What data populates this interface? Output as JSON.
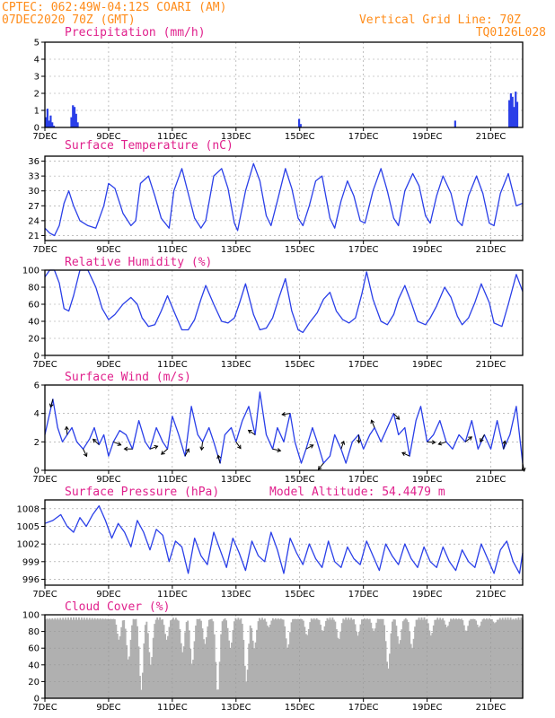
{
  "header": {
    "line1": "CPTEC:   062:49W-04:12S   COARI (AM)",
    "line2": "07DEC2020 70Z (GMT)",
    "grid_note": "Vertical Grid Line: 70Z",
    "code": "TQ0126L028"
  },
  "colors": {
    "header": "#ff8c1a",
    "title": "#e0208c",
    "series": "#2a3fe8",
    "cloud": "#b0b0b0",
    "vector": "#000000"
  },
  "x_axis": {
    "tick_labels": [
      "7DEC",
      "9DEC",
      "11DEC",
      "13DEC",
      "15DEC",
      "17DEC",
      "19DEC",
      "21DEC"
    ],
    "tick_days": [
      7,
      9,
      11,
      13,
      15,
      17,
      19,
      21
    ],
    "range_days": [
      7,
      22
    ]
  },
  "chart_data": [
    {
      "id": "precip",
      "type": "bar",
      "title": "Precipitation (mm/h)",
      "ylim": [
        0,
        5
      ],
      "yticks": [
        0,
        1,
        2,
        3,
        4,
        5
      ],
      "grid": true,
      "x_days": [
        7.0,
        7.05,
        7.1,
        7.15,
        7.2,
        7.25,
        7.8,
        7.85,
        7.9,
        7.95,
        8.0,
        14.95,
        15.0,
        19.85,
        21.55,
        21.6,
        21.65,
        21.7,
        21.75,
        21.8
      ],
      "values": [
        0.6,
        1.1,
        0.4,
        0.7,
        0.3,
        0.1,
        0.6,
        1.3,
        1.2,
        0.8,
        0.3,
        0.5,
        0.2,
        0.4,
        1.6,
        2.0,
        1.8,
        1.2,
        2.1,
        1.5
      ]
    },
    {
      "id": "temp",
      "type": "line",
      "title": "Surface Temperature (nC)",
      "ylim": [
        20,
        37
      ],
      "yticks": [
        21,
        24,
        27,
        30,
        33,
        36
      ],
      "grid": true,
      "x_days": [
        7.0,
        7.15,
        7.3,
        7.45,
        7.6,
        7.75,
        7.9,
        8.1,
        8.35,
        8.6,
        8.85,
        9.0,
        9.2,
        9.45,
        9.7,
        9.85,
        10.0,
        10.25,
        10.45,
        10.65,
        10.9,
        11.05,
        11.3,
        11.5,
        11.7,
        11.9,
        12.05,
        12.3,
        12.55,
        12.75,
        12.95,
        13.05,
        13.3,
        13.55,
        13.75,
        13.95,
        14.1,
        14.3,
        14.55,
        14.75,
        14.95,
        15.1,
        15.3,
        15.5,
        15.7,
        15.95,
        16.1,
        16.3,
        16.5,
        16.7,
        16.9,
        17.05,
        17.3,
        17.55,
        17.75,
        17.95,
        18.1,
        18.3,
        18.55,
        18.75,
        18.95,
        19.1,
        19.3,
        19.5,
        19.75,
        19.95,
        20.1,
        20.3,
        20.55,
        20.75,
        20.95,
        21.1,
        21.3,
        21.55,
        21.8,
        22.0
      ],
      "values": [
        22.5,
        21.5,
        21.0,
        23.0,
        27.5,
        30.0,
        27.0,
        24.0,
        23.0,
        22.5,
        27.0,
        31.5,
        30.5,
        25.5,
        23.0,
        24.0,
        31.5,
        33.0,
        29.0,
        24.5,
        22.5,
        30.0,
        34.5,
        29.5,
        24.5,
        22.5,
        24.0,
        33.0,
        34.5,
        30.5,
        23.5,
        22.0,
        30.0,
        35.5,
        32.0,
        25.0,
        23.0,
        28.0,
        34.5,
        30.5,
        24.5,
        23.0,
        27.0,
        32.0,
        33.0,
        24.5,
        22.5,
        28.0,
        32.0,
        29.0,
        24.0,
        23.5,
        30.0,
        34.5,
        30.0,
        24.5,
        23.0,
        30.0,
        33.5,
        31.0,
        25.0,
        23.5,
        29.0,
        33.0,
        29.5,
        24.0,
        23.0,
        29.0,
        33.0,
        29.5,
        23.5,
        23.0,
        29.5,
        33.5,
        27.0,
        27.5
      ]
    },
    {
      "id": "rh",
      "type": "line",
      "title": "Relative Humidity (%)",
      "ylim": [
        0,
        100
      ],
      "yticks": [
        0,
        20,
        40,
        60,
        80,
        100
      ],
      "grid": true,
      "x_days": [
        7.0,
        7.15,
        7.3,
        7.45,
        7.6,
        7.75,
        7.9,
        8.1,
        8.35,
        8.6,
        8.8,
        9.0,
        9.2,
        9.45,
        9.7,
        9.9,
        10.05,
        10.25,
        10.45,
        10.65,
        10.85,
        11.05,
        11.3,
        11.5,
        11.7,
        11.9,
        12.05,
        12.3,
        12.55,
        12.75,
        12.95,
        13.1,
        13.3,
        13.55,
        13.75,
        13.95,
        14.15,
        14.35,
        14.55,
        14.75,
        14.95,
        15.1,
        15.3,
        15.55,
        15.75,
        15.95,
        16.15,
        16.35,
        16.55,
        16.75,
        16.95,
        17.1,
        17.3,
        17.55,
        17.75,
        17.95,
        18.1,
        18.3,
        18.5,
        18.7,
        18.95,
        19.1,
        19.3,
        19.55,
        19.75,
        19.95,
        20.1,
        20.3,
        20.5,
        20.7,
        20.95,
        21.1,
        21.35,
        21.55,
        21.8,
        22.0
      ],
      "values": [
        92,
        100,
        100,
        85,
        55,
        52,
        70,
        100,
        100,
        80,
        55,
        42,
        48,
        60,
        68,
        60,
        44,
        34,
        36,
        52,
        70,
        52,
        30,
        30,
        42,
        66,
        82,
        60,
        40,
        38,
        44,
        60,
        84,
        48,
        30,
        32,
        44,
        68,
        90,
        52,
        30,
        27,
        38,
        50,
        66,
        74,
        52,
        42,
        38,
        44,
        72,
        98,
        66,
        40,
        36,
        48,
        66,
        82,
        62,
        40,
        36,
        44,
        58,
        80,
        68,
        46,
        36,
        44,
        62,
        84,
        62,
        38,
        34,
        60,
        95,
        75
      ]
    },
    {
      "id": "wind",
      "type": "line",
      "title": "Surface Wind (m/s)",
      "ylim": [
        0,
        6
      ],
      "yticks": [
        0,
        2,
        4,
        6
      ],
      "grid": true,
      "x_days": [
        7.0,
        7.1,
        7.25,
        7.4,
        7.55,
        7.7,
        7.85,
        8.0,
        8.2,
        8.4,
        8.55,
        8.7,
        8.85,
        9.0,
        9.15,
        9.35,
        9.55,
        9.75,
        9.95,
        10.15,
        10.3,
        10.5,
        10.7,
        10.85,
        11.0,
        11.2,
        11.4,
        11.6,
        11.8,
        11.95,
        12.15,
        12.3,
        12.5,
        12.65,
        12.85,
        13.0,
        13.2,
        13.4,
        13.6,
        13.75,
        13.95,
        14.15,
        14.3,
        14.5,
        14.7,
        14.85,
        15.05,
        15.2,
        15.4,
        15.55,
        15.75,
        15.95,
        16.1,
        16.3,
        16.45,
        16.65,
        16.85,
        17.0,
        17.2,
        17.35,
        17.55,
        17.75,
        17.95,
        18.1,
        18.3,
        18.45,
        18.65,
        18.8,
        19.0,
        19.2,
        19.4,
        19.6,
        19.8,
        20.0,
        20.2,
        20.4,
        20.6,
        20.8,
        21.0,
        21.2,
        21.4,
        21.6,
        21.8,
        22.0
      ],
      "values": [
        2.5,
        3.5,
        5.0,
        3.0,
        2.0,
        2.5,
        3.0,
        2.0,
        1.5,
        2.2,
        3.0,
        1.8,
        2.5,
        1.0,
        2.0,
        2.8,
        2.5,
        1.5,
        3.5,
        2.0,
        1.5,
        3.0,
        2.0,
        1.5,
        3.8,
        2.5,
        1.0,
        4.5,
        2.5,
        2.0,
        3.0,
        2.0,
        0.5,
        2.5,
        3.0,
        2.0,
        3.5,
        4.5,
        2.5,
        5.5,
        2.5,
        1.5,
        3.0,
        2.0,
        4.0,
        2.0,
        0.5,
        1.5,
        3.0,
        2.0,
        0.5,
        1.0,
        2.5,
        1.5,
        0.5,
        2.0,
        2.5,
        1.5,
        2.5,
        3.0,
        2.0,
        3.0,
        4.0,
        2.5,
        3.0,
        1.0,
        3.5,
        4.5,
        2.0,
        2.5,
        3.5,
        2.0,
        1.5,
        2.5,
        2.0,
        3.5,
        1.5,
        2.5,
        1.5,
        3.5,
        1.5,
        2.5,
        4.5,
        0.5
      ]
    },
    {
      "id": "pressure",
      "type": "line",
      "title": "Surface Pressure (hPa)",
      "annotation": "Model Altitude: 54.4479 m",
      "ylim": [
        995,
        1009.5
      ],
      "yticks": [
        996,
        999,
        1002,
        1005,
        1008
      ],
      "grid": true,
      "x_days": [
        7.0,
        7.25,
        7.5,
        7.7,
        7.9,
        8.1,
        8.3,
        8.5,
        8.7,
        8.9,
        9.1,
        9.3,
        9.5,
        9.7,
        9.9,
        10.1,
        10.3,
        10.5,
        10.7,
        10.9,
        11.1,
        11.3,
        11.5,
        11.7,
        11.9,
        12.1,
        12.3,
        12.5,
        12.7,
        12.9,
        13.1,
        13.3,
        13.5,
        13.7,
        13.9,
        14.1,
        14.3,
        14.5,
        14.7,
        14.9,
        15.1,
        15.3,
        15.5,
        15.7,
        15.9,
        16.1,
        16.3,
        16.5,
        16.7,
        16.9,
        17.1,
        17.3,
        17.5,
        17.7,
        17.9,
        18.1,
        18.3,
        18.5,
        18.7,
        18.9,
        19.1,
        19.3,
        19.5,
        19.7,
        19.9,
        20.1,
        20.3,
        20.5,
        20.7,
        20.9,
        21.1,
        21.3,
        21.5,
        21.7,
        21.9,
        22.0
      ],
      "values": [
        1005.5,
        1006.0,
        1007.0,
        1005.0,
        1004.0,
        1006.5,
        1005.0,
        1007.0,
        1008.5,
        1006.0,
        1003.0,
        1005.5,
        1004.0,
        1001.5,
        1006.0,
        1004.0,
        1001.0,
        1004.5,
        1003.5,
        999.0,
        1002.5,
        1001.5,
        997.0,
        1003.0,
        1000.0,
        998.5,
        1004.0,
        1001.0,
        998.0,
        1003.0,
        1000.5,
        997.5,
        1002.5,
        1000.0,
        999.0,
        1004.0,
        1001.0,
        997.0,
        1003.0,
        1000.5,
        998.5,
        1002.0,
        999.5,
        998.0,
        1002.5,
        999.0,
        998.0,
        1001.5,
        999.5,
        998.5,
        1002.5,
        1000.0,
        997.5,
        1002.0,
        1000.0,
        998.5,
        1002.0,
        999.5,
        998.0,
        1001.5,
        999.0,
        998.0,
        1001.5,
        999.0,
        997.5,
        1001.0,
        999.0,
        998.0,
        1002.0,
        999.5,
        997.0,
        1001.0,
        1002.5,
        999.0,
        997.0,
        1000.5
      ]
    },
    {
      "id": "cloud",
      "type": "bar",
      "title": "Cloud Cover (%)",
      "ylim": [
        0,
        100
      ],
      "yticks": [
        0,
        20,
        40,
        60,
        80,
        100
      ],
      "grid": true,
      "step_days": 0.0417,
      "dips": [
        [
          9.3,
          70
        ],
        [
          9.6,
          45
        ],
        [
          10.0,
          10
        ],
        [
          10.3,
          40
        ],
        [
          10.8,
          70
        ],
        [
          11.3,
          55
        ],
        [
          11.6,
          40
        ],
        [
          12.0,
          65
        ],
        [
          12.4,
          5
        ],
        [
          12.8,
          60
        ],
        [
          13.3,
          20
        ],
        [
          13.55,
          60
        ],
        [
          14.0,
          85
        ],
        [
          14.6,
          60
        ],
        [
          15.2,
          75
        ],
        [
          15.7,
          80
        ],
        [
          16.2,
          70
        ],
        [
          16.8,
          75
        ],
        [
          17.3,
          80
        ],
        [
          17.75,
          35
        ],
        [
          18.1,
          65
        ],
        [
          18.5,
          60
        ],
        [
          19.1,
          75
        ],
        [
          19.6,
          85
        ],
        [
          20.2,
          80
        ],
        [
          20.6,
          85
        ],
        [
          21.1,
          90
        ],
        [
          21.7,
          95
        ]
      ]
    }
  ]
}
